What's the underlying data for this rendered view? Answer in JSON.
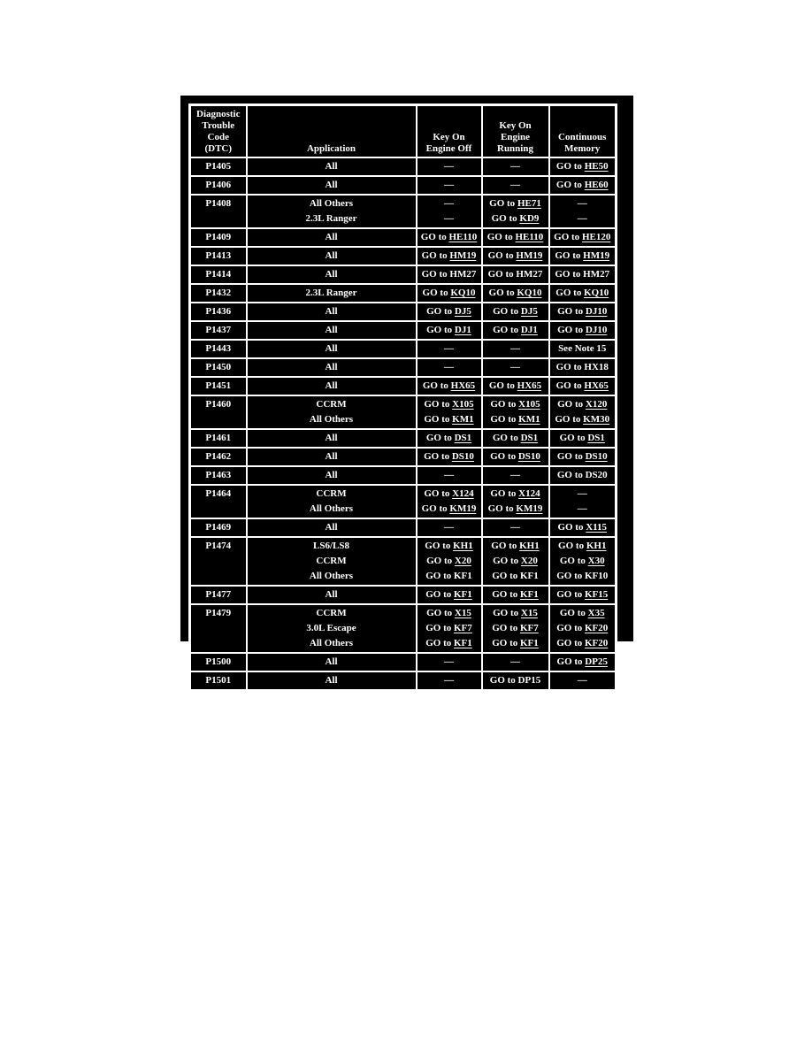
{
  "panel": {
    "background_color": "#000000",
    "text_color": "#ffffff",
    "border_color": "#ffffff"
  },
  "table": {
    "go_prefix": "GO to",
    "dash": "—",
    "headers": [
      "Diagnostic\nTrouble\nCode (DTC)",
      "Application",
      "Key On\nEngine Off",
      "Key On\nEngine\nRunning",
      "Continuous\nMemory"
    ],
    "rows": [
      {
        "code": "P1405",
        "subrows": [
          {
            "app": "All",
            "koeo": {
              "text": "—"
            },
            "koer": {
              "text": "—"
            },
            "cm": {
              "go": "HE50",
              "link": true
            }
          }
        ]
      },
      {
        "code": "P1406",
        "subrows": [
          {
            "app": "All",
            "koeo": {
              "text": "—"
            },
            "koer": {
              "text": "—"
            },
            "cm": {
              "go": "HE60",
              "link": true
            }
          }
        ]
      },
      {
        "code": "P1408",
        "subrows": [
          {
            "app": "All Others",
            "koeo": {
              "text": "—"
            },
            "koer": {
              "go": "HE71",
              "link": true
            },
            "cm": {
              "text": "—"
            }
          },
          {
            "app": "2.3L Ranger",
            "koeo": {
              "text": "—"
            },
            "koer": {
              "go": "KD9",
              "link": true
            },
            "cm": {
              "text": "—"
            }
          }
        ]
      },
      {
        "code": "P1409",
        "subrows": [
          {
            "app": "All",
            "koeo": {
              "go": "HE110",
              "link": true
            },
            "koer": {
              "go": "HE110",
              "link": true
            },
            "cm": {
              "go": "HE120",
              "link": true
            }
          }
        ]
      },
      {
        "code": "P1413",
        "subrows": [
          {
            "app": "All",
            "koeo": {
              "go": "HM19",
              "link": true
            },
            "koer": {
              "go": "HM19",
              "link": true
            },
            "cm": {
              "go": "HM19",
              "link": true
            }
          }
        ]
      },
      {
        "code": "P1414",
        "subrows": [
          {
            "app": "All",
            "koeo": {
              "go": "HM27",
              "link": false
            },
            "koer": {
              "go": "HM27",
              "link": false
            },
            "cm": {
              "go": "HM27",
              "link": false
            }
          }
        ]
      },
      {
        "code": "P1432",
        "subrows": [
          {
            "app": "2.3L Ranger",
            "koeo": {
              "go": "KQ10",
              "link": true
            },
            "koer": {
              "go": "KQ10",
              "link": true
            },
            "cm": {
              "go": "KQ10",
              "link": true
            }
          }
        ]
      },
      {
        "code": "P1436",
        "subrows": [
          {
            "app": "All",
            "koeo": {
              "go": "DJ5",
              "link": true
            },
            "koer": {
              "go": "DJ5",
              "link": true
            },
            "cm": {
              "go": "DJ10",
              "link": true
            }
          }
        ]
      },
      {
        "code": "P1437",
        "subrows": [
          {
            "app": "All",
            "koeo": {
              "go": "DJ1",
              "link": true
            },
            "koer": {
              "go": "DJ1",
              "link": true
            },
            "cm": {
              "go": "DJ10",
              "link": true
            }
          }
        ]
      },
      {
        "code": "P1443",
        "subrows": [
          {
            "app": "All",
            "koeo": {
              "text": "—"
            },
            "koer": {
              "text": "—"
            },
            "cm": {
              "text": "See Note 15"
            }
          }
        ]
      },
      {
        "code": "P1450",
        "subrows": [
          {
            "app": "All",
            "koeo": {
              "text": "—"
            },
            "koer": {
              "text": "—"
            },
            "cm": {
              "go": "HX18",
              "link": false
            }
          }
        ]
      },
      {
        "code": "P1451",
        "subrows": [
          {
            "app": "All",
            "koeo": {
              "go": "HX65",
              "link": true
            },
            "koer": {
              "go": "HX65",
              "link": true
            },
            "cm": {
              "go": "HX65",
              "link": true
            }
          }
        ]
      },
      {
        "code": "P1460",
        "subrows": [
          {
            "app": "CCRM",
            "koeo": {
              "go": "X105",
              "link": true
            },
            "koer": {
              "go": "X105",
              "link": true
            },
            "cm": {
              "go": "X120",
              "link": true
            }
          },
          {
            "app": "All Others",
            "koeo": {
              "go": "KM1",
              "link": true
            },
            "koer": {
              "go": "KM1",
              "link": true
            },
            "cm": {
              "go": "KM30",
              "link": true
            }
          }
        ]
      },
      {
        "code": "P1461",
        "subrows": [
          {
            "app": "All",
            "koeo": {
              "go": "DS1",
              "link": true
            },
            "koer": {
              "go": "DS1",
              "link": true
            },
            "cm": {
              "go": "DS1",
              "link": true
            }
          }
        ]
      },
      {
        "code": "P1462",
        "subrows": [
          {
            "app": "All",
            "koeo": {
              "go": "DS10",
              "link": true
            },
            "koer": {
              "go": "DS10",
              "link": true
            },
            "cm": {
              "go": "DS10",
              "link": true
            }
          }
        ]
      },
      {
        "code": "P1463",
        "subrows": [
          {
            "app": "All",
            "koeo": {
              "text": "—"
            },
            "koer": {
              "text": "—"
            },
            "cm": {
              "go": "DS20",
              "link": false
            }
          }
        ]
      },
      {
        "code": "P1464",
        "subrows": [
          {
            "app": "CCRM",
            "koeo": {
              "go": "X124",
              "link": true
            },
            "koer": {
              "go": "X124",
              "link": true
            },
            "cm": {
              "text": "—"
            }
          },
          {
            "app": "All Others",
            "koeo": {
              "go": "KM19",
              "link": true
            },
            "koer": {
              "go": "KM19",
              "link": true
            },
            "cm": {
              "text": "—"
            }
          }
        ]
      },
      {
        "code": "P1469",
        "subrows": [
          {
            "app": "All",
            "koeo": {
              "text": "—"
            },
            "koer": {
              "text": "—"
            },
            "cm": {
              "go": "X115",
              "link": true
            }
          }
        ]
      },
      {
        "code": "P1474",
        "subrows": [
          {
            "app": "LS6/LS8",
            "koeo": {
              "go": "KH1",
              "link": true
            },
            "koer": {
              "go": "KH1",
              "link": true
            },
            "cm": {
              "go": "KH1",
              "link": true
            }
          },
          {
            "app": "CCRM",
            "koeo": {
              "go": "X20",
              "link": true
            },
            "koer": {
              "go": "X20",
              "link": true
            },
            "cm": {
              "go": "X30",
              "link": true
            }
          },
          {
            "app": "All Others",
            "koeo": {
              "go": "KF1",
              "link": false
            },
            "koer": {
              "go": "KF1",
              "link": false
            },
            "cm": {
              "go": "KF10",
              "link": false
            }
          }
        ]
      },
      {
        "code": "P1477",
        "subrows": [
          {
            "app": "All",
            "koeo": {
              "go": "KF1",
              "link": true
            },
            "koer": {
              "go": "KF1",
              "link": true
            },
            "cm": {
              "go": "KF15",
              "link": true
            }
          }
        ]
      },
      {
        "code": "P1479",
        "subrows": [
          {
            "app": "CCRM",
            "koeo": {
              "go": "X15",
              "link": true
            },
            "koer": {
              "go": "X15",
              "link": true
            },
            "cm": {
              "go": "X35",
              "link": true
            }
          },
          {
            "app": "3.0L Escape",
            "koeo": {
              "go": "KF7",
              "link": true
            },
            "koer": {
              "go": "KF7",
              "link": true
            },
            "cm": {
              "go": "KF20",
              "link": true
            }
          },
          {
            "app": "All Others",
            "koeo": {
              "go": "KF1",
              "link": true
            },
            "koer": {
              "go": "KF1",
              "link": true
            },
            "cm": {
              "go": "KF20",
              "link": true
            }
          }
        ]
      },
      {
        "code": "P1500",
        "subrows": [
          {
            "app": "All",
            "koeo": {
              "text": "—"
            },
            "koer": {
              "text": "—"
            },
            "cm": {
              "go": "DP25",
              "link": true
            }
          }
        ]
      },
      {
        "code": "P1501",
        "subrows": [
          {
            "app": "All",
            "koeo": {
              "text": "—"
            },
            "koer": {
              "go": "DP15",
              "link": false
            },
            "cm": {
              "text": "—"
            }
          }
        ]
      }
    ]
  }
}
